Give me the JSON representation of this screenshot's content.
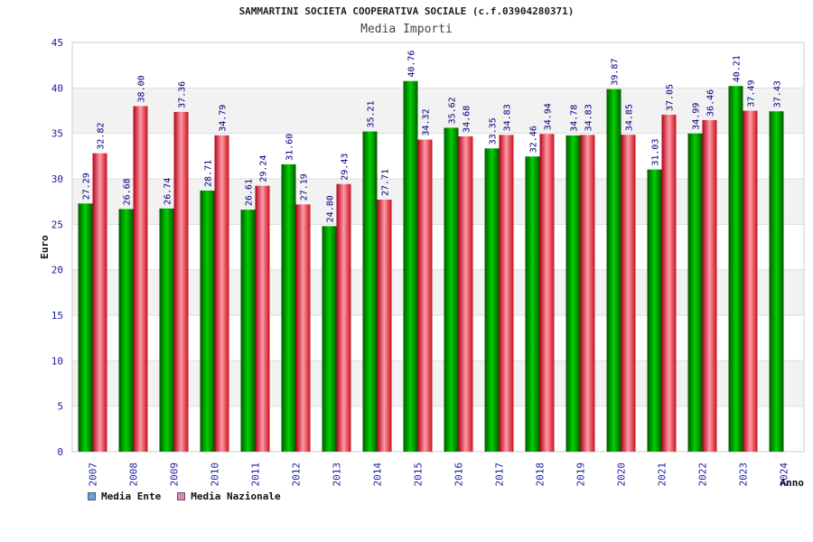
{
  "chart_data": {
    "type": "bar",
    "title": "SAMMARTINI SOCIETA COOPERATIVA SOCIALE (c.f.03904280371)",
    "subtitle": "Media Importi",
    "ylabel": "Euro",
    "xlabel": "Anno",
    "ylim": [
      0,
      45
    ],
    "yticks": [
      0,
      5,
      10,
      15,
      20,
      25,
      30,
      35,
      40,
      45
    ],
    "categories": [
      "2007",
      "2008",
      "2009",
      "2010",
      "2011",
      "2012",
      "2013",
      "2014",
      "2015",
      "2016",
      "2017",
      "2018",
      "2019",
      "2020",
      "2021",
      "2022",
      "2023",
      "2024"
    ],
    "series": [
      {
        "name": "Media Ente",
        "color": "#00aa00",
        "legend_color": "#66a3e0",
        "values": [
          27.29,
          26.68,
          26.74,
          28.71,
          26.61,
          31.6,
          24.8,
          35.21,
          40.76,
          35.62,
          33.35,
          32.46,
          34.78,
          39.87,
          31.03,
          34.99,
          40.21,
          37.43
        ],
        "labels": [
          "27.29",
          "26.68",
          "26.74",
          "28.71",
          "26.61",
          "31.60",
          "24.80",
          "35.21",
          "40.76",
          "35.62",
          "33.35",
          "32.46",
          "34.78",
          "39.87",
          "31.03",
          "34.99",
          "40.21",
          "37.43"
        ]
      },
      {
        "name": "Media Nazionale",
        "color": "#e6262e",
        "legend_color": "#dd88bb",
        "values": [
          32.82,
          38.0,
          37.36,
          34.79,
          29.24,
          27.19,
          29.43,
          27.71,
          34.32,
          34.68,
          34.83,
          34.94,
          34.83,
          34.85,
          37.05,
          36.46,
          37.49,
          null
        ],
        "labels": [
          "32.82",
          "38.00",
          "37.36",
          "34.79",
          "29.24",
          "27.19",
          "29.43",
          "27.71",
          "34.32",
          "34.68",
          "34.83",
          "34.94",
          "34.83",
          "34.85",
          "37.05",
          "36.46",
          "37.49",
          ""
        ]
      }
    ],
    "grid": true,
    "legend_position": "bottom-left"
  }
}
